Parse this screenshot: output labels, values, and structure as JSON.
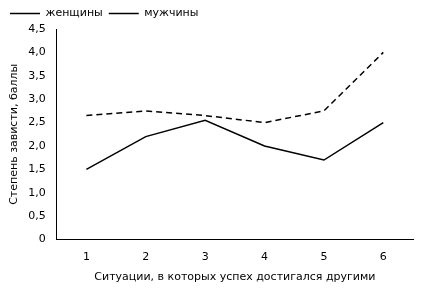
{
  "chart_data": {
    "type": "line",
    "x_label": "Ситуации, в которых успех достигался другими",
    "y_label": "Степень зависти, баллы",
    "categories": [
      "1",
      "2",
      "3",
      "4",
      "5",
      "6"
    ],
    "series": [
      {
        "name": "женщины",
        "color": "#000000",
        "line_style": "dashed",
        "values": [
          2.65,
          2.75,
          2.65,
          2.5,
          2.75,
          4.0
        ]
      },
      {
        "name": "мужчины",
        "color": "#000000",
        "line_style": "solid",
        "values": [
          1.5,
          2.2,
          2.55,
          2.0,
          1.7,
          2.5
        ]
      }
    ],
    "ylim": [
      0,
      4.5
    ],
    "yticks": [
      0,
      {
        "value": 0.5,
        "label": "0,5"
      },
      {
        "value": 1,
        "label": "1,0"
      },
      {
        "value": 1.5,
        "label": "1,5"
      },
      {
        "value": 2,
        "label": "2,0"
      },
      {
        "value": 2.5,
        "label": "2,5"
      },
      {
        "value": 3,
        "label": "3,0"
      },
      {
        "value": 3.5,
        "label": "3,5"
      },
      {
        "value": 4,
        "label": "4,0"
      },
      {
        "value": 4.5,
        "label": "4,5"
      }
    ],
    "grid": false,
    "legend": "upper left"
  }
}
